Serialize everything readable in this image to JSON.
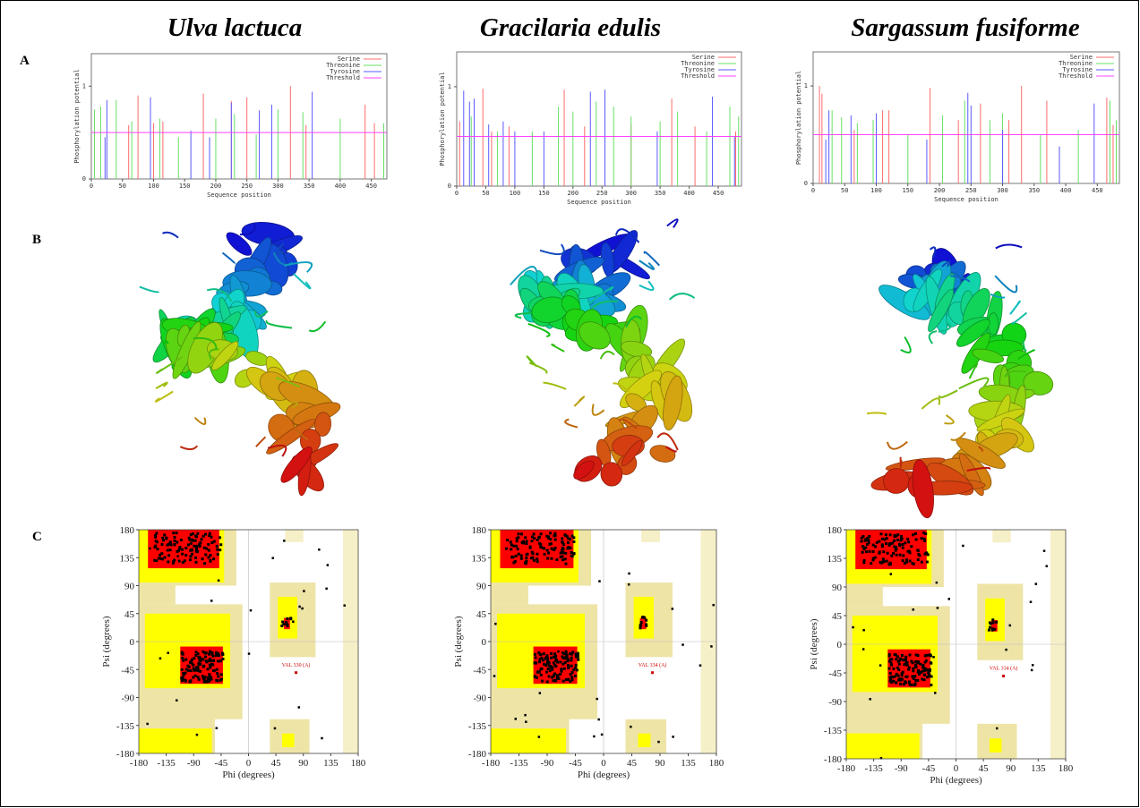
{
  "panel_labels": [
    "A",
    "B",
    "C"
  ],
  "columns": [
    {
      "species": "Ulva lactuca",
      "phosphorylation": {
        "x_label": "Sequence position",
        "y_label": "Phosphorylation potential",
        "xlim": [
          0,
          475
        ],
        "ylim": [
          0,
          1.35
        ],
        "xticks": [
          0,
          50,
          100,
          150,
          200,
          250,
          300,
          350,
          400,
          450
        ],
        "yticks": [
          0,
          1
        ],
        "series": [
          {
            "name": "Serine",
            "color": "#ff6b6b",
            "positions": [
              60,
              75,
              100,
              115,
              180,
              225,
              250,
              320,
              345,
              440,
              455
            ],
            "values": [
              0.58,
              0.9,
              0.6,
              0.62,
              0.92,
              0.84,
              0.88,
              1.0,
              0.58,
              0.8,
              0.6
            ]
          },
          {
            "name": "Threonine",
            "color": "#66e066",
            "positions": [
              5,
              15,
              40,
              65,
              110,
              140,
              200,
              230,
              265,
              300,
              340,
              400,
              470
            ],
            "values": [
              0.75,
              0.78,
              0.85,
              0.62,
              0.65,
              0.45,
              0.65,
              0.7,
              0.48,
              0.75,
              0.72,
              0.65,
              0.6
            ]
          },
          {
            "name": "Tyrosine",
            "color": "#5a5aff",
            "positions": [
              22,
              25,
              95,
              160,
              190,
              225,
              270,
              290,
              355
            ],
            "values": [
              0.45,
              0.85,
              0.88,
              0.52,
              0.45,
              0.82,
              0.74,
              0.8,
              0.94
            ]
          },
          {
            "name": "Threshold",
            "color": "#ff44ff",
            "value": 0.5
          }
        ]
      },
      "ramachandran": {
        "x_label": "Phi (degrees)",
        "y_label": "Psi (degrees)",
        "ticks": [
          -180,
          -135,
          -90,
          -45,
          0,
          45,
          90,
          135,
          180
        ],
        "outlier_label": "VAL 330 (A)"
      }
    },
    {
      "species": "Gracilaria edulis",
      "phosphorylation": {
        "x_label": "Sequence position",
        "y_label": "Phosphorylation potential",
        "xlim": [
          0,
          490
        ],
        "ylim": [
          0,
          1.35
        ],
        "xticks": [
          0,
          50,
          100,
          150,
          200,
          250,
          300,
          350,
          400,
          450
        ],
        "yticks": [
          0,
          1
        ],
        "series": [
          {
            "name": "Serine",
            "color": "#ff6b6b",
            "positions": [
              5,
              45,
              60,
              90,
              185,
              220,
              300,
              370,
              410,
              480
            ],
            "values": [
              0.65,
              0.98,
              0.55,
              0.6,
              0.97,
              0.6,
              0.62,
              0.88,
              0.6,
              0.55
            ]
          },
          {
            "name": "Threonine",
            "color": "#66e066",
            "positions": [
              25,
              70,
              130,
              175,
              200,
              240,
              270,
              300,
              350,
              380,
              430,
              470,
              485
            ],
            "values": [
              0.7,
              0.55,
              0.55,
              0.8,
              0.75,
              0.85,
              0.8,
              0.7,
              0.65,
              0.75,
              0.55,
              0.8,
              0.7
            ]
          },
          {
            "name": "Tyrosine",
            "color": "#5a5aff",
            "positions": [
              12,
              22,
              30,
              55,
              80,
              100,
              150,
              230,
              255,
              345,
              440,
              478
            ],
            "values": [
              0.96,
              0.85,
              0.88,
              0.62,
              0.65,
              0.55,
              0.55,
              0.95,
              0.97,
              0.55,
              0.9,
              0.5
            ]
          },
          {
            "name": "Threshold",
            "color": "#ff44ff",
            "value": 0.5
          }
        ]
      },
      "ramachandran": {
        "x_label": "Phi (degrees)",
        "y_label": "Psi (degrees)",
        "ticks": [
          -180,
          -135,
          -90,
          -45,
          0,
          45,
          90,
          135,
          180
        ],
        "outlier_label": "VAL 334 (A)"
      }
    },
    {
      "species": "Sargassum fusiforme",
      "phosphorylation": {
        "x_label": "Sequence position",
        "y_label": "Phosphorylation potential",
        "xlim": [
          0,
          485
        ],
        "ylim": [
          0,
          1.35
        ],
        "xticks": [
          0,
          50,
          100,
          150,
          200,
          250,
          300,
          350,
          400,
          450
        ],
        "yticks": [
          0,
          1
        ],
        "series": [
          {
            "name": "Serine",
            "color": "#ff6b6b",
            "positions": [
              10,
              14,
              65,
              110,
              120,
              185,
              230,
              265,
              310,
              330,
              370,
              465,
              475
            ],
            "values": [
              1.0,
              0.92,
              0.55,
              0.75,
              0.75,
              0.98,
              0.65,
              0.82,
              0.65,
              1.0,
              0.85,
              0.88,
              0.6
            ]
          },
          {
            "name": "Threonine",
            "color": "#66e066",
            "positions": [
              30,
              45,
              70,
              95,
              150,
              205,
              240,
              280,
              300,
              360,
              420,
              470,
              480
            ],
            "values": [
              0.75,
              0.68,
              0.62,
              0.65,
              0.5,
              0.7,
              0.85,
              0.65,
              0.72,
              0.5,
              0.55,
              0.85,
              0.65
            ]
          },
          {
            "name": "Tyrosine",
            "color": "#5a5aff",
            "positions": [
              20,
              25,
              60,
              100,
              180,
              245,
              250,
              300,
              390,
              445
            ],
            "values": [
              0.45,
              0.75,
              0.7,
              0.72,
              0.45,
              0.93,
              0.8,
              0.55,
              0.38,
              0.82
            ]
          },
          {
            "name": "Threshold",
            "color": "#ff44ff",
            "value": 0.5
          }
        ]
      },
      "ramachandran": {
        "x_label": "Phi (degrees)",
        "y_label": "Psi (degrees)",
        "ticks": [
          -180,
          -135,
          -90,
          -45,
          0,
          45,
          90,
          135,
          180
        ],
        "outlier_label": "VAL 334 (A)"
      }
    }
  ]
}
